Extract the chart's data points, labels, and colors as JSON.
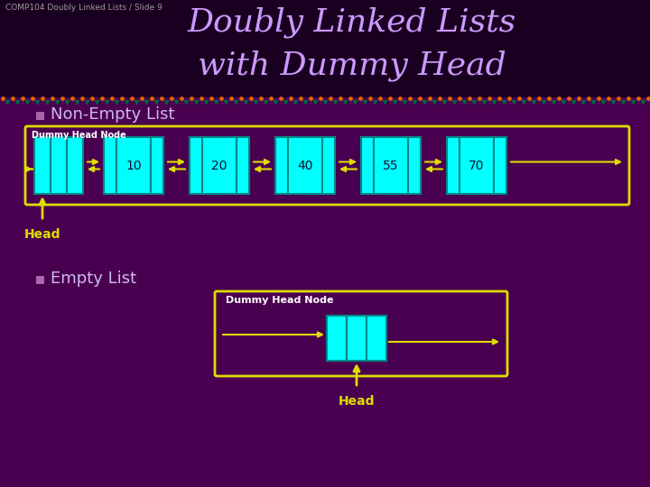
{
  "bg_color": "#4a0050",
  "title_bg_color": "#1a0020",
  "title_color": "#cc99ff",
  "slide_label": "COMP104 Doubly Linked Lists / Slide 9",
  "slide_label_color": "#999999",
  "title_line1": "Doubly Linked Lists",
  "title_line2": "with Dummy Head",
  "section1": "Non-Empty List",
  "section2": "Empty List",
  "node_values": [
    "10",
    "20",
    "40",
    "55",
    "70"
  ],
  "node_color": "#00ffff",
  "node_border_color": "#008888",
  "box_border_color": "#dddd00",
  "arrow_color": "#dddd00",
  "head_label_color": "#dddd00",
  "dummy_label_color": "#ffffff",
  "bullet_color": "#aa66aa",
  "section_color": "#ccbbee",
  "sep_color_orange": "#dd6600",
  "sep_color_teal": "#006644"
}
